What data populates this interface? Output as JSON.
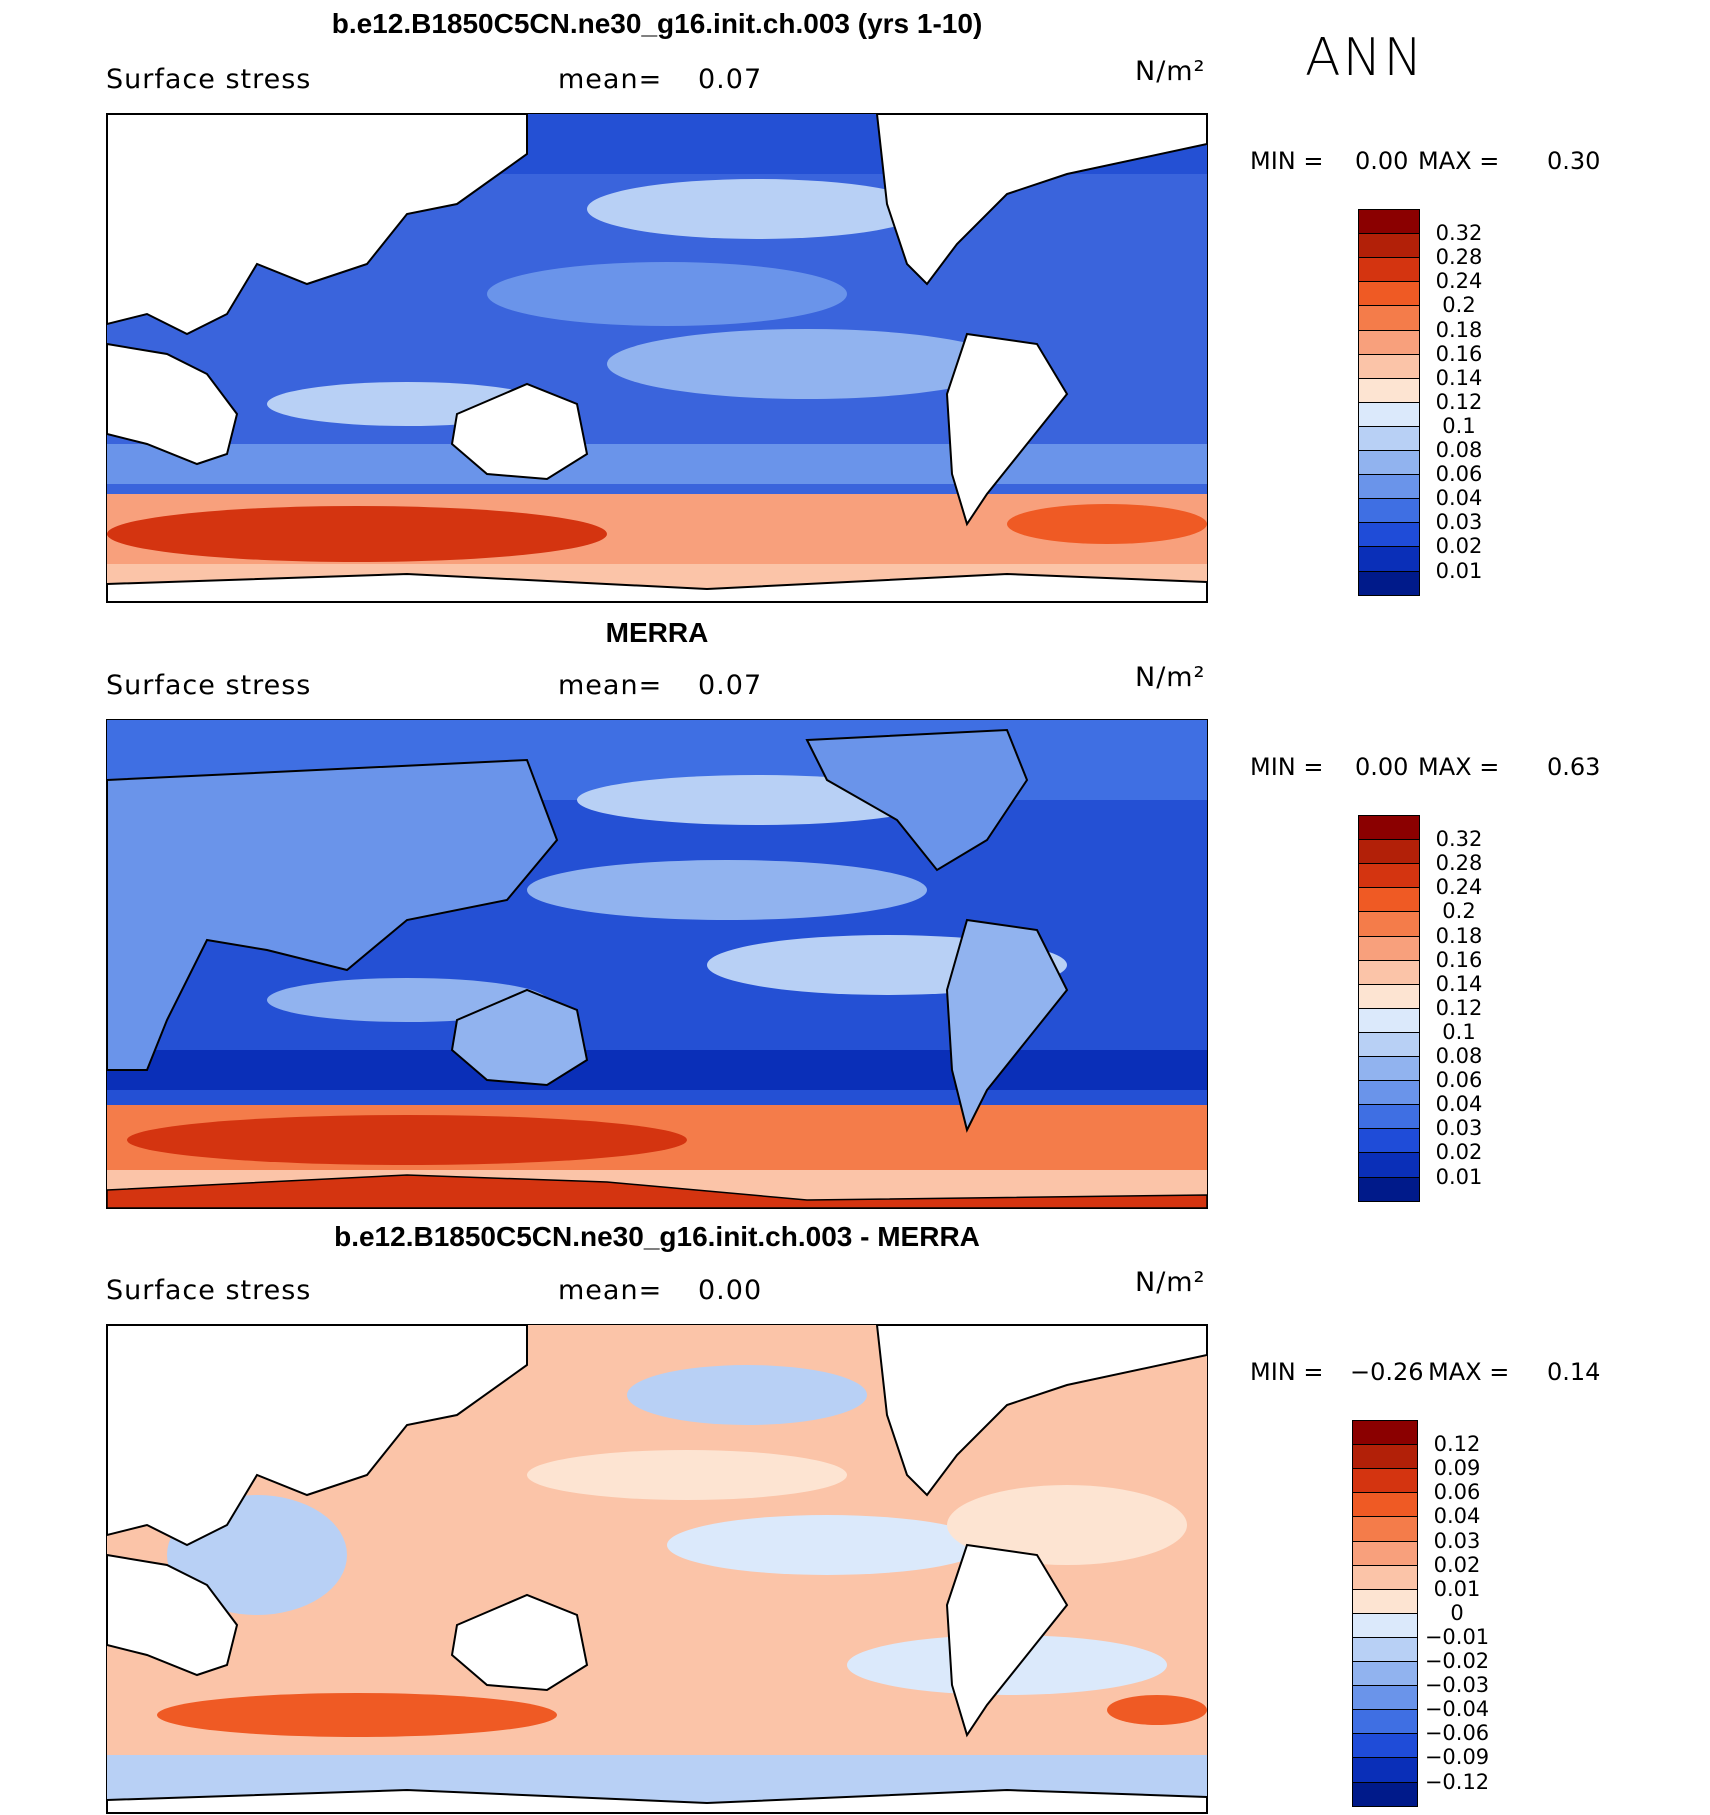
{
  "season": "ANN",
  "panels": [
    {
      "title": "b.e12.B1850C5CN.ne30_g16.init.ch.003 (yrs 1-10)",
      "variable": "Surface stress",
      "mean_label": "mean=",
      "mean_value": "0.07",
      "units": "N/m²",
      "min_label": "MIN =",
      "min_value": "0.00",
      "max_label": "MAX =",
      "max_value": "0.30",
      "colorbar_labels": [
        "0.32",
        "0.28",
        "0.24",
        "0.2",
        "0.18",
        "0.16",
        "0.14",
        "0.12",
        "0.1",
        "0.08",
        "0.06",
        "0.04",
        "0.03",
        "0.02",
        "0.01"
      ],
      "colorbar_colors": [
        "#8b0000",
        "#b22008",
        "#d43410",
        "#ef5a24",
        "#f47c4a",
        "#f8a07c",
        "#fbc4a8",
        "#fde4d2",
        "#dbe9fb",
        "#b8d0f5",
        "#91b3ef",
        "#6a94ea",
        "#3f6fe3",
        "#1f4cd8",
        "#0a2fb8",
        "#001a8a"
      ]
    },
    {
      "title": "MERRA",
      "variable": "Surface stress",
      "mean_label": "mean=",
      "mean_value": "0.07",
      "units": "N/m²",
      "min_label": "MIN =",
      "min_value": "0.00",
      "max_label": "MAX =",
      "max_value": "0.63",
      "colorbar_labels": [
        "0.32",
        "0.28",
        "0.24",
        "0.2",
        "0.18",
        "0.16",
        "0.14",
        "0.12",
        "0.1",
        "0.08",
        "0.06",
        "0.04",
        "0.03",
        "0.02",
        "0.01"
      ],
      "colorbar_colors": [
        "#8b0000",
        "#b22008",
        "#d43410",
        "#ef5a24",
        "#f47c4a",
        "#f8a07c",
        "#fbc4a8",
        "#fde4d2",
        "#dbe9fb",
        "#b8d0f5",
        "#91b3ef",
        "#6a94ea",
        "#3f6fe3",
        "#1f4cd8",
        "#0a2fb8",
        "#001a8a"
      ]
    },
    {
      "title": "b.e12.B1850C5CN.ne30_g16.init.ch.003 - MERRA",
      "variable": "Surface stress",
      "mean_label": "mean=",
      "mean_value": "0.00",
      "units": "N/m²",
      "min_label": "MIN =",
      "min_value": "−0.26",
      "max_label": "MAX =",
      "max_value": "0.14",
      "colorbar_labels": [
        "0.12",
        "0.09",
        "0.06",
        "0.04",
        "0.03",
        "0.02",
        "0.01",
        "0",
        "−0.01",
        "−0.02",
        "−0.03",
        "−0.04",
        "−0.06",
        "−0.09",
        "−0.12"
      ],
      "colorbar_colors": [
        "#8b0000",
        "#b22008",
        "#d43410",
        "#ef5a24",
        "#f47c4a",
        "#f8a07c",
        "#fbc4a8",
        "#fde4d2",
        "#dbe9fb",
        "#b8d0f5",
        "#91b3ef",
        "#6a94ea",
        "#3f6fe3",
        "#1f4cd8",
        "#0a2fb8",
        "#001a8a"
      ]
    }
  ]
}
